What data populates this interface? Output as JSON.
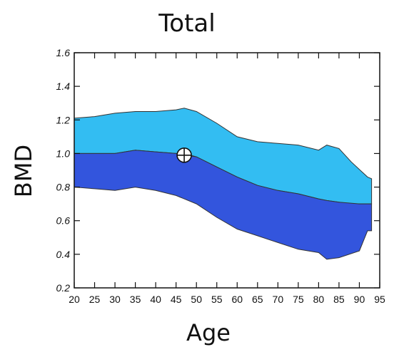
{
  "chart_data": {
    "type": "area",
    "title": "Total",
    "xlabel": "Age",
    "ylabel": "BMD",
    "xlim": [
      20,
      95
    ],
    "ylim": [
      0.2,
      1.6
    ],
    "x_ticks": [
      "20",
      "25",
      "30",
      "35",
      "40",
      "45",
      "50",
      "55",
      "60",
      "65",
      "70",
      "75",
      "80",
      "85",
      "90",
      "95"
    ],
    "y_ticks": [
      "0.2",
      "0.4",
      "0.6",
      "0.8",
      "1.0",
      "1.2",
      "1.4",
      "1.6"
    ],
    "grid": false,
    "colors": {
      "upper_band": "#33bdf2",
      "lower_band": "#3355dd",
      "outline": "#333333"
    },
    "bands": {
      "upper": {
        "x": [
          20,
          25,
          30,
          35,
          40,
          45,
          47,
          50,
          55,
          60,
          65,
          70,
          75,
          80,
          82,
          85,
          88,
          92,
          93
        ],
        "top": [
          1.21,
          1.22,
          1.24,
          1.25,
          1.25,
          1.26,
          1.27,
          1.25,
          1.18,
          1.1,
          1.07,
          1.06,
          1.05,
          1.02,
          1.05,
          1.03,
          0.95,
          0.86,
          0.85
        ],
        "bottom": [
          1.0,
          1.0,
          1.0,
          1.02,
          1.01,
          1.0,
          1.0,
          0.98,
          0.92,
          0.86,
          0.81,
          0.78,
          0.76,
          0.73,
          0.72,
          0.71,
          0.7,
          0.7,
          0.7
        ]
      },
      "lower": {
        "x": [
          20,
          25,
          30,
          35,
          40,
          45,
          50,
          55,
          60,
          65,
          70,
          75,
          80,
          82,
          85,
          90,
          92,
          93
        ],
        "top": [
          1.0,
          1.0,
          1.0,
          1.02,
          1.01,
          1.0,
          0.98,
          0.92,
          0.86,
          0.81,
          0.78,
          0.76,
          0.73,
          0.72,
          0.71,
          0.7,
          0.7,
          0.7
        ],
        "bottom": [
          0.8,
          0.79,
          0.78,
          0.8,
          0.78,
          0.75,
          0.7,
          0.62,
          0.55,
          0.51,
          0.47,
          0.43,
          0.41,
          0.37,
          0.38,
          0.42,
          0.54,
          0.54
        ]
      }
    },
    "marker": {
      "x": 47,
      "y": 0.99,
      "shape": "crosshair-circle"
    }
  }
}
